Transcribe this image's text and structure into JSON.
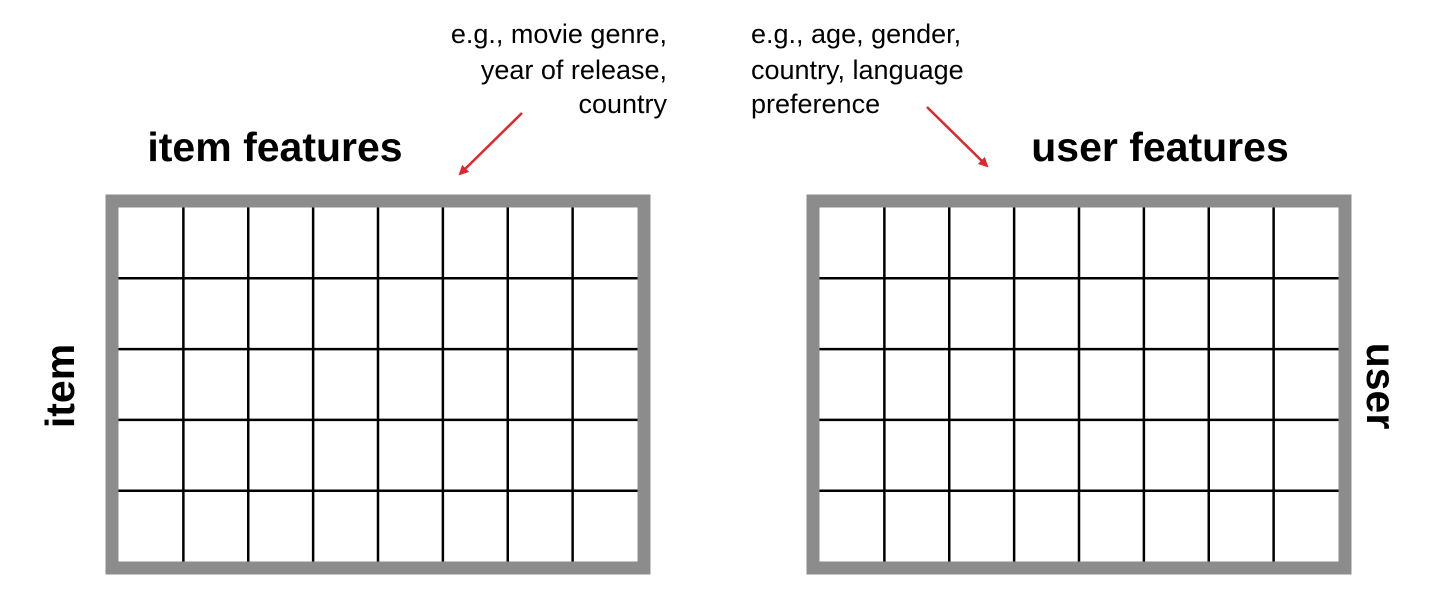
{
  "left_matrix": {
    "heading": "item features",
    "row_label": "item",
    "note_lines": [
      "e.g., movie genre,",
      "year of release,",
      "country"
    ],
    "columns": 8,
    "rows": 5
  },
  "right_matrix": {
    "heading": "user features",
    "row_label": "user",
    "note_lines": [
      "e.g., age, gender,",
      "country, language",
      "preference"
    ],
    "columns": 8,
    "rows": 5
  },
  "colors": {
    "frame": "#8c8c8c",
    "grid": "#000000",
    "arrow": "#e0262a"
  }
}
